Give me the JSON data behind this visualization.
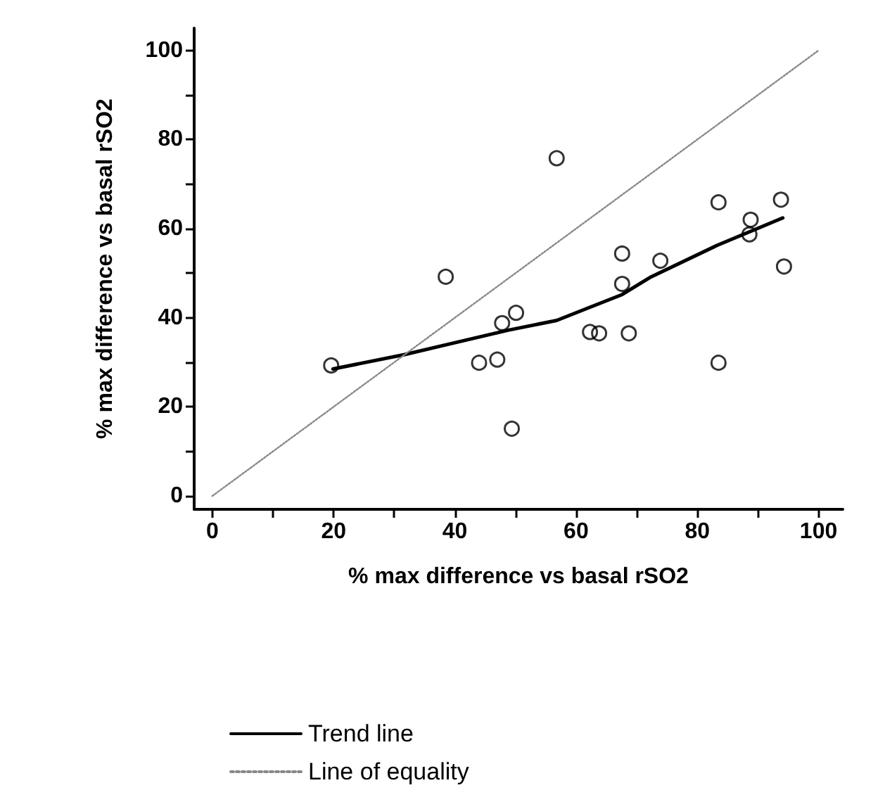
{
  "chart_data": {
    "type": "scatter",
    "xlabel": "% max difference vs basal rSO2",
    "ylabel": "% max difference vs basal rSO2",
    "xlim": [
      -3,
      104
    ],
    "ylim": [
      -3,
      105
    ],
    "xticks": [
      0,
      {
        "value": 10,
        "label": null
      },
      20,
      {
        "value": 30,
        "label": null
      },
      40,
      {
        "value": 50,
        "label": null
      },
      60,
      {
        "value": 70,
        "label": null
      },
      80,
      {
        "value": 90,
        "label": null
      },
      100
    ],
    "yticks": [
      0,
      {
        "value": 10,
        "label": null
      },
      20,
      {
        "value": 30,
        "label": null
      },
      40,
      {
        "value": 50,
        "label": null
      },
      60,
      {
        "value": 70,
        "label": null
      },
      80,
      {
        "value": 90,
        "label": null
      },
      100
    ],
    "grid": false,
    "legend": "bottom",
    "marker": "circle",
    "series": [
      {
        "color": "#000000",
        "x": [
          19.6,
          38.5,
          44.0,
          47.0,
          47.8,
          50.1,
          49.4,
          56.8,
          62.3,
          63.8,
          67.6,
          67.6,
          68.7,
          73.9,
          83.5,
          83.5,
          88.8,
          88.6,
          93.8,
          94.3
        ],
        "values": [
          29.3,
          49.2,
          29.9,
          30.6,
          38.8,
          41.1,
          15.1,
          75.8,
          36.8,
          36.5,
          54.4,
          47.6,
          36.5,
          52.8,
          65.9,
          29.9,
          62.0,
          58.7,
          66.5,
          51.5
        ]
      },
      {
        "type": "line",
        "name": "Trend line",
        "color": "#000000",
        "marker": "none",
        "line_style": "solid",
        "x": [
          19.9,
          31.6,
          38.8,
          48.8,
          56.8,
          62.0,
          67.6,
          72.4,
          83.2,
          94.1
        ],
        "values": [
          28.5,
          31.7,
          34.0,
          37.2,
          39.4,
          42.2,
          45.2,
          49.2,
          56.2,
          62.4
        ]
      },
      {
        "type": "line",
        "name": "Line of equality",
        "color": "#888888",
        "marker": "none",
        "line_style": "dotted",
        "x": [
          0,
          100
        ],
        "values": [
          0,
          100
        ]
      }
    ]
  }
}
